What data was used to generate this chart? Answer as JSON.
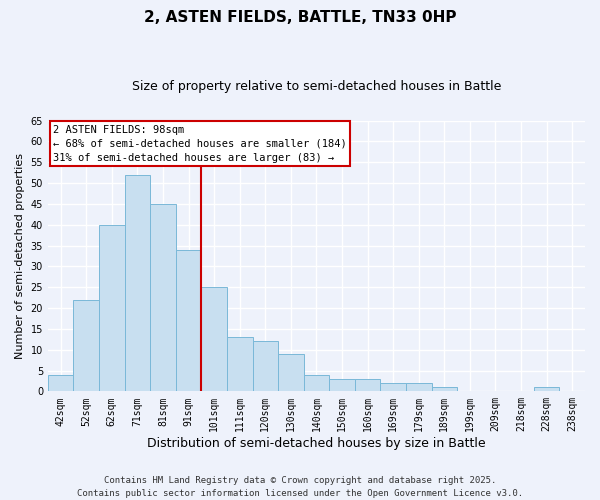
{
  "title": "2, ASTEN FIELDS, BATTLE, TN33 0HP",
  "subtitle": "Size of property relative to semi-detached houses in Battle",
  "xlabel": "Distribution of semi-detached houses by size in Battle",
  "ylabel": "Number of semi-detached properties",
  "bar_labels": [
    "42sqm",
    "52sqm",
    "62sqm",
    "71sqm",
    "81sqm",
    "91sqm",
    "101sqm",
    "111sqm",
    "120sqm",
    "130sqm",
    "140sqm",
    "150sqm",
    "160sqm",
    "169sqm",
    "179sqm",
    "189sqm",
    "199sqm",
    "209sqm",
    "218sqm",
    "228sqm",
    "238sqm"
  ],
  "bar_values": [
    4,
    22,
    40,
    52,
    45,
    34,
    25,
    13,
    12,
    9,
    4,
    3,
    3,
    2,
    2,
    1,
    0,
    0,
    0,
    1,
    0
  ],
  "bar_color": "#c8dff0",
  "bar_edge_color": "#7ab8d8",
  "ylim": [
    0,
    65
  ],
  "yticks": [
    0,
    5,
    10,
    15,
    20,
    25,
    30,
    35,
    40,
    45,
    50,
    55,
    60,
    65
  ],
  "vline_x_idx": 6,
  "vline_color": "#cc0000",
  "annotation_title": "2 ASTEN FIELDS: 98sqm",
  "annotation_line1": "← 68% of semi-detached houses are smaller (184)",
  "annotation_line2": "31% of semi-detached houses are larger (83) →",
  "annotation_box_color": "#ffffff",
  "annotation_box_edge": "#cc0000",
  "footer1": "Contains HM Land Registry data © Crown copyright and database right 2025.",
  "footer2": "Contains public sector information licensed under the Open Government Licence v3.0.",
  "background_color": "#eef2fb",
  "grid_color": "#ffffff",
  "title_fontsize": 11,
  "subtitle_fontsize": 9,
  "xlabel_fontsize": 9,
  "ylabel_fontsize": 8,
  "tick_fontsize": 7,
  "footer_fontsize": 6.5,
  "ann_fontsize": 7.5
}
